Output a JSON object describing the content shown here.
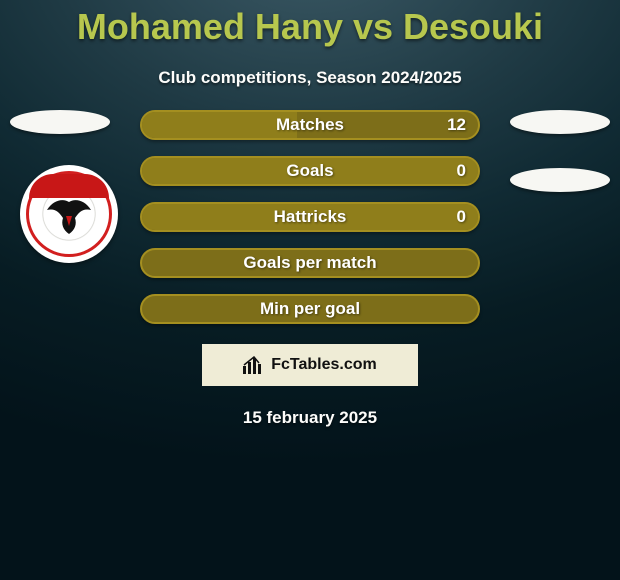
{
  "title": "Mohamed Hany vs Desouki",
  "subtitle": "Club competitions, Season 2024/2025",
  "date": "15 february 2025",
  "brand": "FcTables.com",
  "colors": {
    "title": "#b7c74e",
    "bar_border": "#a48f20",
    "bar_bg": "#7d6e19",
    "bar_fill": "#8f7e1b",
    "pill": "#f7f7f3",
    "brand_box": "#efecd6",
    "badge_red": "#c81717"
  },
  "stats": [
    {
      "label": "Matches",
      "value": "12",
      "fill_pct": 46
    },
    {
      "label": "Goals",
      "value": "0",
      "fill_pct": 100
    },
    {
      "label": "Hattricks",
      "value": "0",
      "fill_pct": 100
    },
    {
      "label": "Goals per match",
      "value": "",
      "fill_pct": 0
    },
    {
      "label": "Min per goal",
      "value": "",
      "fill_pct": 0
    }
  ],
  "left_pills": 1,
  "right_pills": 2,
  "club_badge": {
    "name": "Al Ahly"
  }
}
